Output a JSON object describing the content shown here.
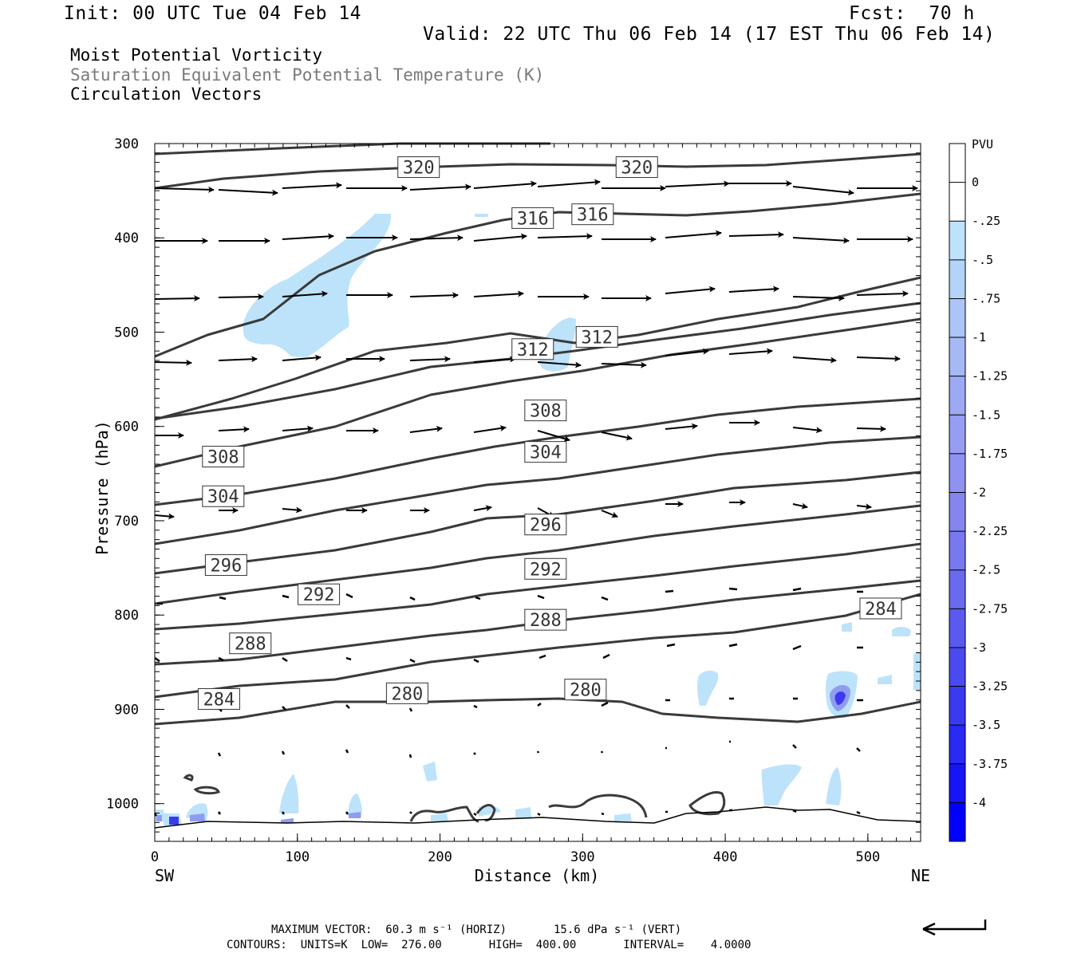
{
  "header": {
    "init": "Init: 00 UTC Tue 04 Feb 14",
    "fcst": "Fcst:  70 h",
    "valid": "Valid: 22 UTC Thu 06 Feb 14 (17 EST Thu 06 Feb 14)"
  },
  "titles": {
    "line1": "Moist Potential Vorticity",
    "line2": "Saturation Equivalent Potential Temperature (K)",
    "line3": "Circulation Vectors"
  },
  "footer": {
    "line1": "MAXIMUM VECTOR:  60.3 m s⁻¹ (HORIZ)       15.6 dPa s⁻¹ (VERT)",
    "line2": "CONTOURS:  UNITS=K  LOW=  276.00       HIGH=  400.00       INTERVAL=    4.0000"
  },
  "colors": {
    "contour": "#3a3a3a",
    "pv_light": "#bde3fa",
    "pv_mid": "#8f9cf2",
    "pv_dark": "#3a3af0",
    "pv_max": "#0000ff"
  },
  "chart_data": {
    "type": "cross-section",
    "xlabel": "Distance (km)",
    "ylabel": "Pressure (hPa)",
    "xlim": [
      0,
      537
    ],
    "ylim": [
      1040,
      300
    ],
    "x_ticks": [
      "0",
      "100",
      "200",
      "300",
      "400",
      "500"
    ],
    "y_ticks": [
      "300",
      "400",
      "500",
      "600",
      "700",
      "800",
      "900",
      "1000"
    ],
    "x_end_labels": {
      "left": "SW",
      "right": "NE"
    },
    "colorbar": {
      "units": "PVU",
      "labels": [
        "0",
        "-.25",
        "-.5",
        "-.75",
        "-1",
        "-1.25",
        "-1.5",
        "-1.75",
        "-2",
        "-2.25",
        "-2.5",
        "-2.75",
        "-3",
        "-3.25",
        "-3.5",
        "-3.75",
        "-4"
      ],
      "colors": [
        "#ffffff",
        "#ffffff",
        "#bde3fa",
        "#b3d3f8",
        "#abc5f6",
        "#a5b9f5",
        "#9ea9f3",
        "#979df2",
        "#8f92f1",
        "#8585f0",
        "#7878ef",
        "#6a6aef",
        "#5a5aef",
        "#4a4af0",
        "#3a3af0",
        "#2a2af5",
        "#1515f8",
        "#0000ff"
      ]
    },
    "contour_labels": [
      {
        "value": "320",
        "x": 185,
        "p": 325
      },
      {
        "value": "320",
        "x": 338,
        "p": 325
      },
      {
        "value": "316",
        "x": 265,
        "p": 379
      },
      {
        "value": "316",
        "x": 307,
        "p": 375
      },
      {
        "value": "312",
        "x": 265,
        "p": 518
      },
      {
        "value": "312",
        "x": 310,
        "p": 505
      },
      {
        "value": "308",
        "x": 274,
        "p": 583
      },
      {
        "value": "308",
        "x": 48,
        "p": 632
      },
      {
        "value": "304",
        "x": 274,
        "p": 627
      },
      {
        "value": "304",
        "x": 48,
        "p": 674
      },
      {
        "value": "296",
        "x": 274,
        "p": 704
      },
      {
        "value": "296",
        "x": 50,
        "p": 747
      },
      {
        "value": "292",
        "x": 274,
        "p": 751
      },
      {
        "value": "292",
        "x": 115,
        "p": 778
      },
      {
        "value": "288",
        "x": 274,
        "p": 805
      },
      {
        "value": "288",
        "x": 67,
        "p": 830
      },
      {
        "value": "284",
        "x": 509,
        "p": 793
      },
      {
        "value": "284",
        "x": 45,
        "p": 889
      },
      {
        "value": "280",
        "x": 177,
        "p": 883
      },
      {
        "value": "280",
        "x": 302,
        "p": 879
      }
    ]
  }
}
